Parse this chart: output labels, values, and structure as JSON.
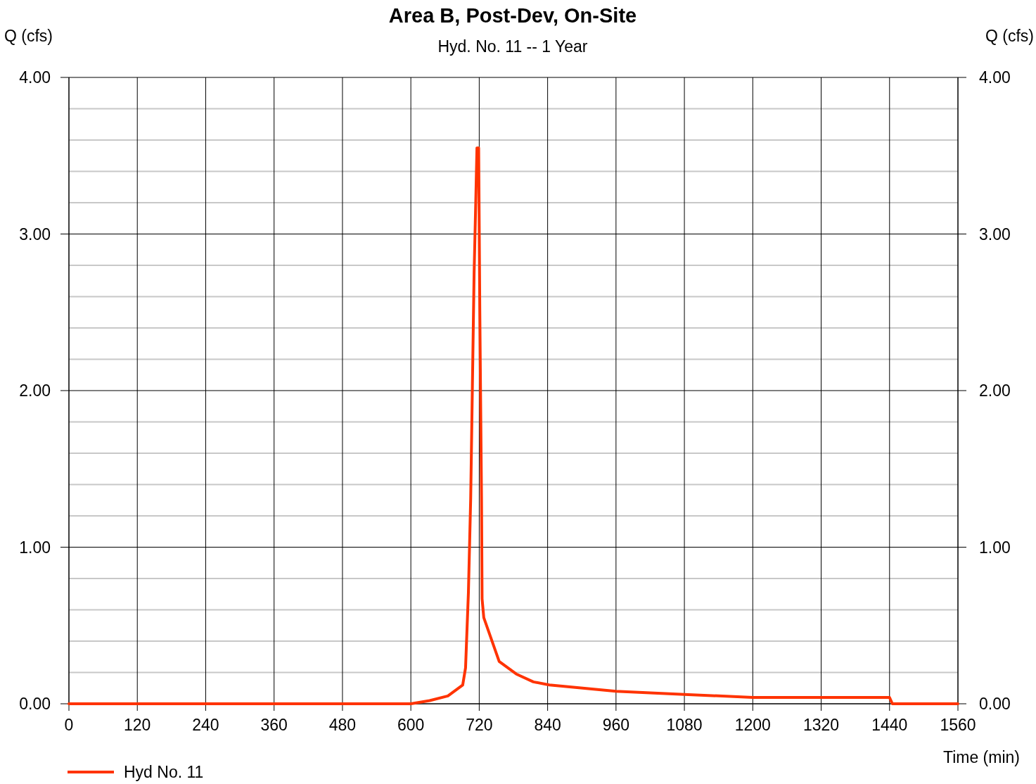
{
  "chart_data": {
    "type": "line",
    "title": "Area B, Post-Dev, On-Site",
    "subtitle": "Hyd. No. 11 -- 1 Year",
    "xlabel": "Time (min)",
    "ylabel": "Q (cfs)",
    "y2label": "Q (cfs)",
    "xlim": [
      0,
      1560
    ],
    "xticks": [
      0,
      120,
      240,
      360,
      480,
      600,
      720,
      840,
      960,
      1080,
      1200,
      1320,
      1440,
      1560
    ],
    "ylim": [
      0,
      4
    ],
    "yticks": [
      {
        "value": 0,
        "label": "0.00"
      },
      {
        "value": 0.2,
        "label": null
      },
      {
        "value": 0.4,
        "label": null
      },
      {
        "value": 0.6,
        "label": null
      },
      {
        "value": 0.8,
        "label": null
      },
      {
        "value": 1,
        "label": "1.00"
      },
      {
        "value": 1.2,
        "label": null
      },
      {
        "value": 1.4,
        "label": null
      },
      {
        "value": 1.6,
        "label": null
      },
      {
        "value": 1.8,
        "label": null
      },
      {
        "value": 2,
        "label": "2.00"
      },
      {
        "value": 2.2,
        "label": null
      },
      {
        "value": 2.4,
        "label": null
      },
      {
        "value": 2.6,
        "label": null
      },
      {
        "value": 2.8,
        "label": null
      },
      {
        "value": 3,
        "label": "3.00"
      },
      {
        "value": 3.2,
        "label": null
      },
      {
        "value": 3.4,
        "label": null
      },
      {
        "value": 3.6,
        "label": null
      },
      {
        "value": 3.8,
        "label": null
      },
      {
        "value": 4,
        "label": "4.00"
      }
    ],
    "y2lim": [
      0,
      4
    ],
    "y2ticks": [
      {
        "value": 0,
        "label": "0.00"
      },
      {
        "value": 1,
        "label": "1.00"
      },
      {
        "value": 2,
        "label": "2.00"
      },
      {
        "value": 3,
        "label": "3.00"
      },
      {
        "value": 4,
        "label": "4.00"
      }
    ],
    "grid": true,
    "legend": "bottom left",
    "marker": "none",
    "line_style": "solid",
    "x": [
      0,
      600,
      633,
      665,
      691,
      696,
      701,
      705,
      708,
      711,
      714,
      716,
      719,
      721,
      724,
      725,
      728,
      755,
      785,
      815,
      843,
      960,
      1080,
      1200,
      1320,
      1440,
      1445,
      1560
    ],
    "series": [
      {
        "name": "Hyd No. 11",
        "color": "#ff3300",
        "values": [
          0,
          0,
          0.02,
          0.05,
          0.12,
          0.23,
          0.71,
          1.31,
          2.03,
          2.75,
          3.22,
          3.55,
          3.55,
          2.51,
          1.31,
          0.67,
          0.55,
          0.27,
          0.19,
          0.14,
          0.12,
          0.08,
          0.06,
          0.04,
          0.04,
          0.04,
          0,
          0
        ]
      }
    ]
  }
}
